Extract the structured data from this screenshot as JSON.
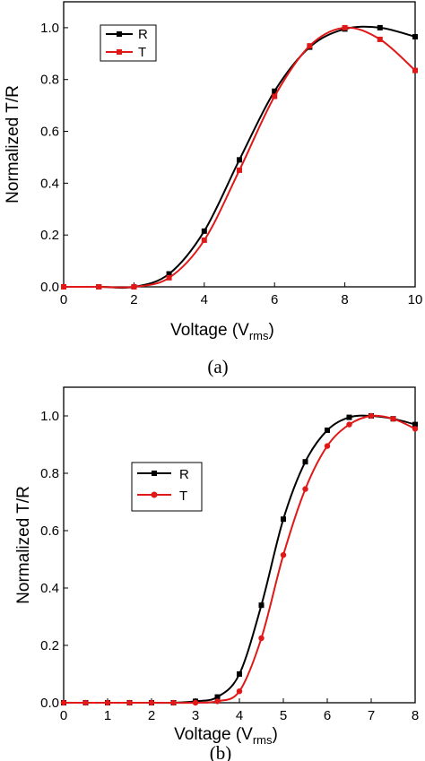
{
  "chart_data": [
    {
      "type": "line",
      "caption": "(a)",
      "xlabel": "Voltage (V",
      "xlabel_sub": "rms",
      "xlabel_close": ")",
      "ylabel": "Normalized T/R",
      "xlim": [
        0,
        10
      ],
      "ylim": [
        0,
        1.1
      ],
      "xticks": [
        "0",
        "2",
        "4",
        "6",
        "8",
        "10"
      ],
      "yticks": [
        "0.0",
        "0.2",
        "0.4",
        "0.6",
        "0.8",
        "1.0"
      ],
      "legend_position": "top-left",
      "series": [
        {
          "name": "R",
          "color": "#000000",
          "marker": "square",
          "x": [
            0,
            1,
            2,
            3,
            4,
            5,
            6,
            7,
            8,
            9,
            10
          ],
          "y": [
            0,
            0,
            0,
            0.05,
            0.215,
            0.49,
            0.755,
            0.925,
            0.995,
            1.0,
            0.965
          ]
        },
        {
          "name": "T",
          "color": "#e01818",
          "marker": "square",
          "x": [
            0,
            1,
            2,
            3,
            4,
            5,
            6,
            7,
            8,
            9,
            10
          ],
          "y": [
            0,
            0,
            0,
            0.035,
            0.18,
            0.45,
            0.735,
            0.93,
            1.0,
            0.955,
            0.835
          ]
        }
      ]
    },
    {
      "type": "line",
      "caption": "(b)",
      "xlabel": "Voltage (V",
      "xlabel_sub": "rms",
      "xlabel_close": ")",
      "ylabel": "Normalized T/R",
      "xlim": [
        0,
        8
      ],
      "ylim": [
        0,
        1.1
      ],
      "xticks": [
        "0",
        "1",
        "2",
        "3",
        "4",
        "5",
        "6",
        "7",
        "8"
      ],
      "yticks": [
        "0.0",
        "0.2",
        "0.4",
        "0.6",
        "0.8",
        "1.0"
      ],
      "legend_position": "top-left",
      "series": [
        {
          "name": "R",
          "color": "#000000",
          "marker": "square",
          "x": [
            0,
            0.5,
            1,
            1.5,
            2,
            2.5,
            3,
            3.5,
            4,
            4.5,
            5,
            5.5,
            6,
            6.5,
            7,
            7.5,
            8
          ],
          "y": [
            0,
            0,
            0,
            0,
            0,
            0,
            0.005,
            0.02,
            0.1,
            0.34,
            0.64,
            0.84,
            0.95,
            0.995,
            1.0,
            0.99,
            0.97
          ]
        },
        {
          "name": "T",
          "color": "#e01818",
          "marker": "circle",
          "x": [
            0,
            0.5,
            1,
            1.5,
            2,
            2.5,
            3,
            3.5,
            4,
            4.5,
            5,
            5.5,
            6,
            6.5,
            7,
            7.5,
            8
          ],
          "y": [
            0,
            0,
            0,
            0,
            0,
            0,
            0,
            0.005,
            0.04,
            0.225,
            0.515,
            0.745,
            0.895,
            0.97,
            1.0,
            0.99,
            0.955
          ]
        }
      ]
    }
  ]
}
